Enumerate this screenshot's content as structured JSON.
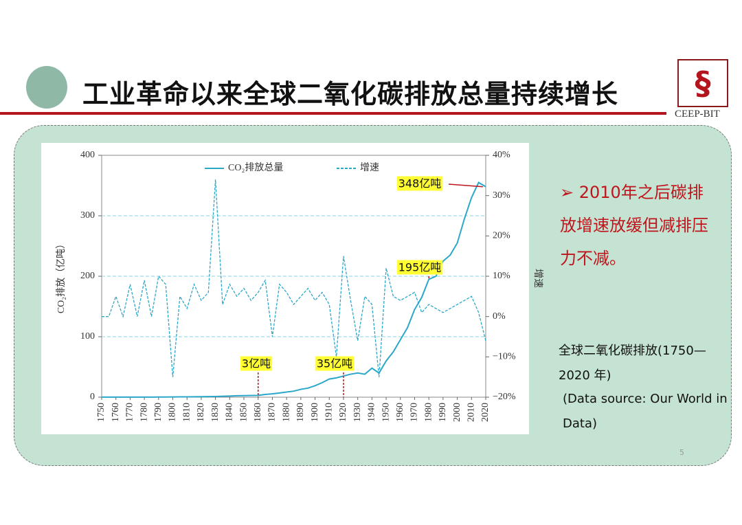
{
  "header": {
    "title": "工业革命以来全球二氧化碳排放总量持续增长",
    "logo_text": "CEEP-BIT"
  },
  "chart_data": {
    "type": "line",
    "x": [
      1750,
      1755,
      1760,
      1765,
      1770,
      1775,
      1780,
      1785,
      1790,
      1795,
      1800,
      1805,
      1810,
      1815,
      1820,
      1825,
      1830,
      1835,
      1840,
      1845,
      1850,
      1855,
      1860,
      1865,
      1870,
      1875,
      1880,
      1885,
      1890,
      1895,
      1900,
      1905,
      1910,
      1915,
      1920,
      1925,
      1930,
      1935,
      1940,
      1945,
      1950,
      1955,
      1960,
      1965,
      1970,
      1975,
      1980,
      1985,
      1990,
      1995,
      2000,
      2005,
      2010,
      2015,
      2020
    ],
    "series": [
      {
        "name": "CO₂排放总量",
        "color": "#2aa7c9",
        "dashed": false,
        "values": [
          0.1,
          0.1,
          0.1,
          0.1,
          0.1,
          0.2,
          0.2,
          0.2,
          0.3,
          0.3,
          0.4,
          0.5,
          0.6,
          0.7,
          0.8,
          1,
          1.2,
          1.5,
          1.9,
          2.4,
          2.5,
          2.8,
          3,
          4.5,
          5.5,
          7,
          8.5,
          10,
          13,
          15,
          19,
          24,
          30,
          32,
          35,
          38,
          40,
          38,
          48,
          40,
          60,
          75,
          95,
          115,
          145,
          165,
          195,
          200,
          225,
          235,
          255,
          295,
          330,
          355,
          348
        ]
      },
      {
        "name": "增速",
        "color": "#2aa7c9",
        "dashed": true,
        "axis": "y2",
        "values": [
          0,
          0,
          5,
          0,
          8,
          0,
          9,
          0,
          10,
          8,
          -15,
          5,
          2,
          8,
          4,
          6,
          34,
          3,
          8,
          5,
          7,
          4,
          6,
          9,
          -5,
          8,
          6,
          3,
          5,
          7,
          4,
          6,
          3,
          -10,
          15,
          4,
          -6,
          5,
          3,
          -15,
          12,
          5,
          4,
          5,
          6,
          1,
          3,
          2,
          1,
          2,
          3,
          4,
          5,
          1,
          -6
        ]
      }
    ],
    "ylabel": "CO₂排放（亿吨）",
    "y2label": "增速",
    "xlim": [
      1750,
      2020
    ],
    "xticks": [
      1750,
      1760,
      1770,
      1780,
      1790,
      1800,
      1810,
      1820,
      1830,
      1840,
      1850,
      1860,
      1870,
      1880,
      1890,
      1900,
      1910,
      1920,
      1930,
      1940,
      1950,
      1960,
      1970,
      1980,
      1990,
      2000,
      2010,
      2020
    ],
    "ylim": [
      0,
      400
    ],
    "yticks": [
      0,
      100,
      200,
      300,
      400
    ],
    "y2lim": [
      -20,
      40
    ],
    "y2ticks": [
      {
        "value": -20,
        "label": "−20%"
      },
      {
        "value": -10,
        "label": "−10%"
      },
      {
        "value": 0,
        "label": "0%"
      },
      {
        "value": 10,
        "label": "10%"
      },
      {
        "value": 20,
        "label": "20%"
      },
      {
        "value": 30,
        "label": "30%"
      },
      {
        "value": 40,
        "label": "40%"
      }
    ],
    "grid": true,
    "annotations": [
      {
        "label": "3亿吨",
        "x": 1860,
        "y": 3
      },
      {
        "label": "35亿吨",
        "x": 1920,
        "y": 35
      },
      {
        "label": "195亿吨",
        "x": 1980,
        "y": 195
      },
      {
        "label": "348亿吨",
        "x": 2018,
        "y": 348
      }
    ]
  },
  "bullet": "2010年之后碳排放增速放缓但减排压力不减。",
  "caption": {
    "title": "全球二氧化碳排放(1750—2020 年)",
    "source": "(Data source: Our World in Data)"
  },
  "page_number": "5"
}
